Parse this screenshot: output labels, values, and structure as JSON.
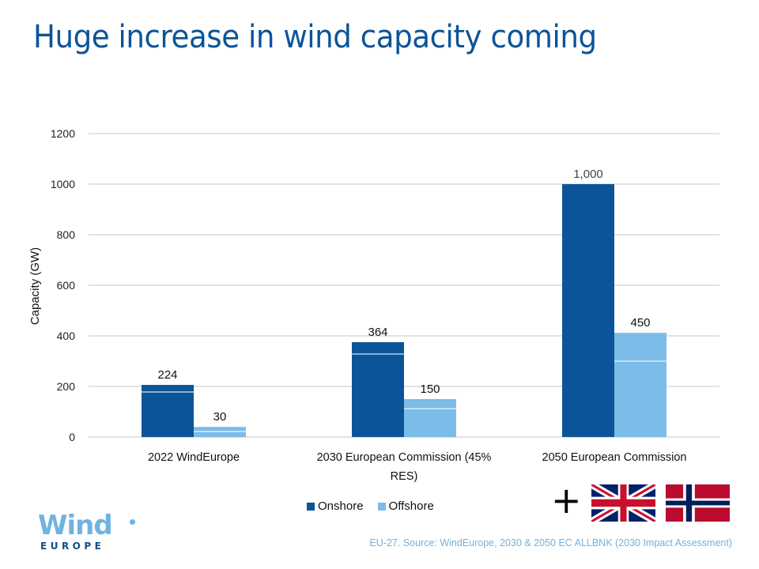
{
  "slide": {
    "title": "Huge increase in wind capacity coming",
    "source_note": "EU-27. Source: WindEurope, 2030 & 2050 EC ALLBNK (2030 Impact Assessment)",
    "logo": {
      "wind": "Wind",
      "europe": "EUROPE"
    },
    "extra_countries": {
      "plus_sign": "+",
      "flags": [
        "uk-flag",
        "norway-flag"
      ]
    }
  },
  "colors": {
    "onshore": "#0b5499",
    "offshore": "#7bbde8",
    "title": "#0b5499",
    "gridline": "#e2e2e2",
    "source": "#74b0da"
  },
  "chart_data": {
    "type": "bar",
    "title": "",
    "xlabel": "",
    "ylabel": "Capacity (GW)",
    "ylim": [
      0,
      1200
    ],
    "yticks": [
      0,
      200,
      400,
      600,
      800,
      1000,
      1200
    ],
    "ytick_labels": [
      "0",
      "200",
      "400",
      "600",
      "800",
      "1000",
      "1200"
    ],
    "grid": true,
    "legend_position": "bottom",
    "categories": [
      "2022 WindEurope",
      "2030 European Commission (45% RES)",
      "2050 European Commission"
    ],
    "category_label_lines": [
      [
        "2022 WindEurope"
      ],
      [
        "2030 European Commission (45%",
        "RES)"
      ],
      [
        "2050 European Commission"
      ]
    ],
    "series": [
      {
        "name": "Onshore",
        "values": [
          224,
          364,
          1000
        ],
        "value_labels": [
          "224",
          "364",
          "1,000"
        ],
        "drawn_segments": [
          [
            178,
            206
          ],
          [
            328,
            375
          ],
          [
            1000,
            1000
          ]
        ]
      },
      {
        "name": "Offshore",
        "values": [
          30,
          150,
          450
        ],
        "value_labels": [
          "30",
          "150",
          "450"
        ],
        "drawn_segments": [
          [
            22,
            40
          ],
          [
            112,
            150
          ],
          [
            300,
            412
          ]
        ]
      }
    ]
  }
}
